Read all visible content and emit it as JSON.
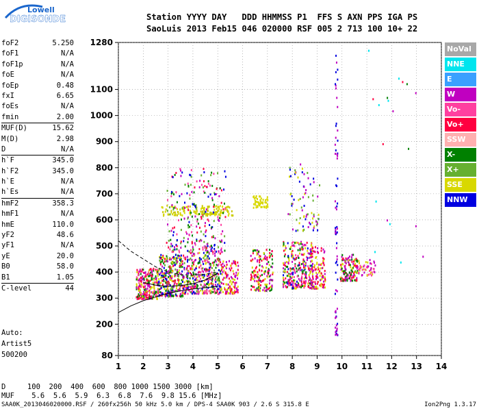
{
  "logo": {
    "line1": "Lowell",
    "line2": "DIGISONDE"
  },
  "header": {
    "row1": "Station YYYY DAY   DDD HHMMSS P1  FFS S AXN PPS IGA PS",
    "row2": "SaoLuis 2013 Feb15 046 020000 RSF 005 2 713 100 10+ 22"
  },
  "params": [
    {
      "name": "foF2",
      "value": "5.250"
    },
    {
      "name": "foF1",
      "value": "N/A"
    },
    {
      "name": "foF1p",
      "value": "N/A"
    },
    {
      "name": "foE",
      "value": "N/A"
    },
    {
      "name": "foEp",
      "value": "0.48"
    },
    {
      "name": "fxI",
      "value": "6.65"
    },
    {
      "name": "foEs",
      "value": "N/A"
    },
    {
      "name": "fmin",
      "value": "2.00"
    },
    {
      "name": "MUF(D)",
      "value": "15.62",
      "sep": true
    },
    {
      "name": "M(D)",
      "value": "2.98"
    },
    {
      "name": "D",
      "value": "N/A"
    },
    {
      "name": "h`F",
      "value": "345.0",
      "sep": true
    },
    {
      "name": "h`F2",
      "value": "345.0"
    },
    {
      "name": "h`E",
      "value": "N/A"
    },
    {
      "name": "h`Es",
      "value": "N/A"
    },
    {
      "name": "hmF2",
      "value": "358.3",
      "sep": true
    },
    {
      "name": "hmF1",
      "value": "N/A"
    },
    {
      "name": "hmE",
      "value": "110.0"
    },
    {
      "name": "yF2",
      "value": "48.6"
    },
    {
      "name": "yF1",
      "value": "N/A"
    },
    {
      "name": "yE",
      "value": "20.0"
    },
    {
      "name": "B0",
      "value": "58.0"
    },
    {
      "name": "B1",
      "value": "1.05"
    },
    {
      "name": "C-level",
      "value": "44",
      "sep": true
    }
  ],
  "autoscale": {
    "line1": "Auto:",
    "line2": "Artist5",
    "line3": "500200"
  },
  "legend": [
    {
      "label": "NoVal",
      "color": "#a8a8a8"
    },
    {
      "label": "NNE",
      "color": "#00e5ee"
    },
    {
      "label": "E",
      "color": "#3aa0ff"
    },
    {
      "label": "W",
      "color": "#c000c0"
    },
    {
      "label": "Vo-",
      "color": "#ff40a0"
    },
    {
      "label": "Vo+",
      "color": "#ff0040"
    },
    {
      "label": "SSW",
      "color": "#ffb0b0"
    },
    {
      "label": "X-",
      "color": "#008000"
    },
    {
      "label": "X+",
      "color": "#66b030"
    },
    {
      "label": "SSE",
      "color": "#d8d800"
    },
    {
      "label": "NNW",
      "color": "#0000e0"
    }
  ],
  "dtable": {
    "row_d": "D     100  200  400  600  800 1000 1500 3000 [km]",
    "row_muf": "MUF    5.6  5.6  5.9  6.3  6.8  7.6  9.8 15.6 [MHz]"
  },
  "footer": "SAA0K_2013046020000.RSF / 260fx256h 50 kHz 5.0 km / DPS-4 SAA0K 903 / 2.6 S 315.8 E",
  "version": "Ion2Png 1.3.17",
  "chart_data": {
    "type": "scatter",
    "xlim": [
      1,
      14
    ],
    "ylim": [
      80,
      1280
    ],
    "xticks": [
      1,
      2,
      3,
      4,
      5,
      6,
      7,
      8,
      9,
      10,
      11,
      12,
      13,
      14
    ],
    "yticks": [
      80,
      200,
      300,
      400,
      500,
      600,
      700,
      800,
      900,
      1000,
      1100,
      1280
    ],
    "grid": true,
    "clusters": [
      {
        "x": [
          1.7,
          2.6
        ],
        "y": [
          300,
          420
        ],
        "n": 260,
        "colors": [
          "#c000c0",
          "#ff0040",
          "#ff40a0",
          "#d8d800",
          "#008000"
        ]
      },
      {
        "x": [
          2.6,
          3.6
        ],
        "y": [
          310,
          470
        ],
        "n": 320,
        "colors": [
          "#c000c0",
          "#ff0040",
          "#d8d800",
          "#008000",
          "#66b030",
          "#0000e0"
        ]
      },
      {
        "x": [
          3.6,
          5.1
        ],
        "y": [
          320,
          480
        ],
        "n": 380,
        "colors": [
          "#c000c0",
          "#ff0040",
          "#d8d800",
          "#008000",
          "#66b030",
          "#0000e0",
          "#ff40a0"
        ]
      },
      {
        "x": [
          5.1,
          5.8
        ],
        "y": [
          320,
          450
        ],
        "n": 120,
        "colors": [
          "#c000c0",
          "#ff0040",
          "#d8d800"
        ]
      },
      {
        "x": [
          2.7,
          5.6
        ],
        "y": [
          620,
          660
        ],
        "n": 140,
        "colors": [
          "#d8d800",
          "#c8c800"
        ]
      },
      {
        "x": [
          2.9,
          5.3
        ],
        "y": [
          480,
          800
        ],
        "n": 260,
        "colors": [
          "#c000c0",
          "#ff0040",
          "#008000",
          "#66b030",
          "#0000e0",
          "#ff40a0"
        ]
      },
      {
        "x": [
          6.3,
          7.2
        ],
        "y": [
          330,
          490
        ],
        "n": 180,
        "colors": [
          "#d8d800",
          "#ff0040",
          "#c000c0",
          "#008000"
        ]
      },
      {
        "x": [
          6.4,
          7.0
        ],
        "y": [
          650,
          700
        ],
        "n": 50,
        "colors": [
          "#d8d800"
        ]
      },
      {
        "x": [
          7.6,
          8.8
        ],
        "y": [
          340,
          520
        ],
        "n": 300,
        "colors": [
          "#c000c0",
          "#ff0040",
          "#d8d800",
          "#008000",
          "#0000e0",
          "#ff40a0"
        ]
      },
      {
        "x": [
          8.7,
          9.3
        ],
        "y": [
          340,
          500
        ],
        "n": 120,
        "colors": [
          "#d8d800",
          "#ff0040",
          "#c000c0"
        ]
      },
      {
        "x": [
          7.8,
          9.1
        ],
        "y": [
          560,
          820
        ],
        "n": 80,
        "colors": [
          "#c000c0",
          "#d8d800",
          "#0000e0",
          "#66b030"
        ]
      },
      {
        "x": [
          9.9,
          10.6
        ],
        "y": [
          370,
          470
        ],
        "n": 140,
        "colors": [
          "#ff0040",
          "#c000c0",
          "#008000",
          "#d8d800"
        ]
      },
      {
        "x": [
          10.6,
          11.3
        ],
        "y": [
          390,
          450
        ],
        "n": 50,
        "colors": [
          "#d8d800",
          "#ff40a0",
          "#c000c0"
        ]
      },
      {
        "x": [
          9.7,
          9.8
        ],
        "y": [
          160,
          1260
        ],
        "n": 70,
        "colors": [
          "#0000e0",
          "#c000c0"
        ]
      },
      {
        "x": [
          10.8,
          13.3
        ],
        "y": [
          420,
          1270
        ],
        "n": 20,
        "colors": [
          "#c000c0",
          "#ff0040",
          "#00e5ee",
          "#008000"
        ]
      }
    ],
    "curves": [
      {
        "style": "solid",
        "x": [
          1,
          1.5,
          2,
          2.5,
          3,
          3.5,
          4,
          4.5,
          5
        ],
        "y": [
          245,
          270,
          290,
          305,
          318,
          328,
          335,
          340,
          345
        ]
      },
      {
        "style": "dashed",
        "x": [
          1,
          1.5,
          2,
          2.5,
          3,
          3.5,
          4,
          4.5,
          5
        ],
        "y": [
          520,
          480,
          450,
          420,
          400,
          390,
          388,
          392,
          400
        ]
      },
      {
        "style": "solid",
        "x": [
          2,
          2.5,
          3,
          3.5,
          4,
          4.5,
          5
        ],
        "y": [
          360,
          350,
          345,
          348,
          355,
          370,
          395
        ]
      }
    ]
  }
}
